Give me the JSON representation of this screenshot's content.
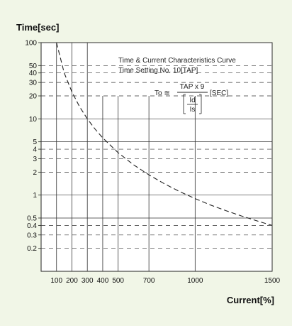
{
  "chart_data": {
    "type": "line",
    "title": "Time & Current Characteristics Curve",
    "subtitle": "Time Setting No. 10[TAP]",
    "ylabel": "Time[sec]",
    "xlabel": "Current[%]",
    "formula": {
      "lhs": "To ≅",
      "numerator": "TAP x 9",
      "inner_numerator": "Id",
      "inner_denominator": "Is",
      "unit": "[SEC]"
    },
    "x_scale": "linear",
    "y_scale": "log",
    "xlim": [
      0,
      1500
    ],
    "ylim": [
      0.1,
      100
    ],
    "x_ticks": [
      100,
      200,
      300,
      400,
      500,
      700,
      1000,
      1500
    ],
    "x_tick_labels": [
      "100",
      "200",
      "300",
      "400",
      "500",
      "700",
      "1000",
      "1500"
    ],
    "y_ticks": [
      100,
      50,
      40,
      30,
      20,
      10,
      5,
      4,
      3,
      2,
      1,
      0.5,
      0.4,
      0.3,
      0.2
    ],
    "y_tick_labels": [
      "100",
      "50",
      "40",
      "30",
      "20",
      "10",
      "5",
      "4",
      "3",
      "2",
      "1",
      "0.5",
      "0.4",
      "0.3",
      "0.2"
    ],
    "grid": true,
    "series": [
      {
        "style": "dashed",
        "x": [
          100,
          150,
          200,
          250,
          300,
          350,
          400,
          500,
          600,
          700,
          800,
          900,
          1000,
          1100,
          1200,
          1300,
          1400,
          1500
        ],
        "y": [
          100,
          40,
          22.5,
          14.4,
          10,
          7.35,
          5.63,
          3.6,
          2.5,
          1.84,
          1.41,
          1.11,
          0.9,
          0.74,
          0.625,
          0.533,
          0.46,
          0.4
        ]
      }
    ]
  }
}
